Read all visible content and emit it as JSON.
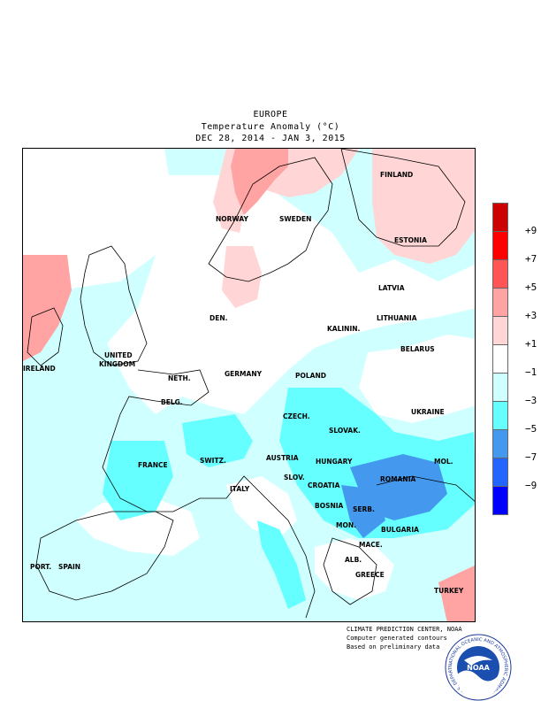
{
  "header": {
    "region": "EUROPE",
    "subtitle": "Temperature Anomaly (°C)",
    "dates": "DEC 28, 2014 - JAN  3, 2015"
  },
  "legend": {
    "colors": [
      "#cc0000",
      "#ff0000",
      "#ff5555",
      "#ffa3a3",
      "#ffd5d5",
      "#ffffff",
      "#d0ffff",
      "#66ffff",
      "#4499ee",
      "#2266ff",
      "#0000ff"
    ],
    "labels": [
      "+9",
      "+7",
      "+5",
      "+3",
      "+1",
      "−1",
      "−3",
      "−5",
      "−7",
      "−9"
    ]
  },
  "regions": {
    "finland": "FINLAND",
    "norway": "NORWAY",
    "sweden": "SWEDEN",
    "estonia": "ESTONIA",
    "latvia": "LATVIA",
    "lithuania": "LITHUANIA",
    "kalinin": "KALININ.",
    "belarus": "BELARUS",
    "den": "DEN.",
    "united": "UNITED",
    "kingdom": "KINGDOM",
    "ireland": "IRELAND",
    "neth": "NETH.",
    "germany": "GERMANY",
    "poland": "POLAND",
    "belg": "BELG.",
    "czech": "CZECH.",
    "ukraine": "UKRAINE",
    "slovak": "SLOVAK.",
    "france": "FRANCE",
    "switz": "SWITZ.",
    "austria": "AUSTRIA",
    "hungary": "HUNGARY",
    "mol": "MOL.",
    "slov": "SLOV.",
    "croatia": "CROATIA",
    "romania": "ROMANIA",
    "italy": "ITALY",
    "bosnia": "BOSNIA",
    "serb": "SERB.",
    "mon": "MON.",
    "bulgaria": "BULGARIA",
    "mace": "MACE.",
    "alb": "ALB.",
    "port": "PORT.",
    "spain": "SPAIN",
    "greece": "GREECE",
    "turkey": "TURKEY"
  },
  "credits": {
    "line1": "CLIMATE PREDICTION CENTER, NOAA",
    "line2": "Computer generated contours",
    "line3": "Based on preliminary data"
  },
  "logo": {
    "text": "NOAA",
    "ring_text": "NATIONAL OCEANIC AND ATMOSPHERIC ADMINISTRATION • U.S. DEPARTMENT OF COMMERCE •"
  }
}
